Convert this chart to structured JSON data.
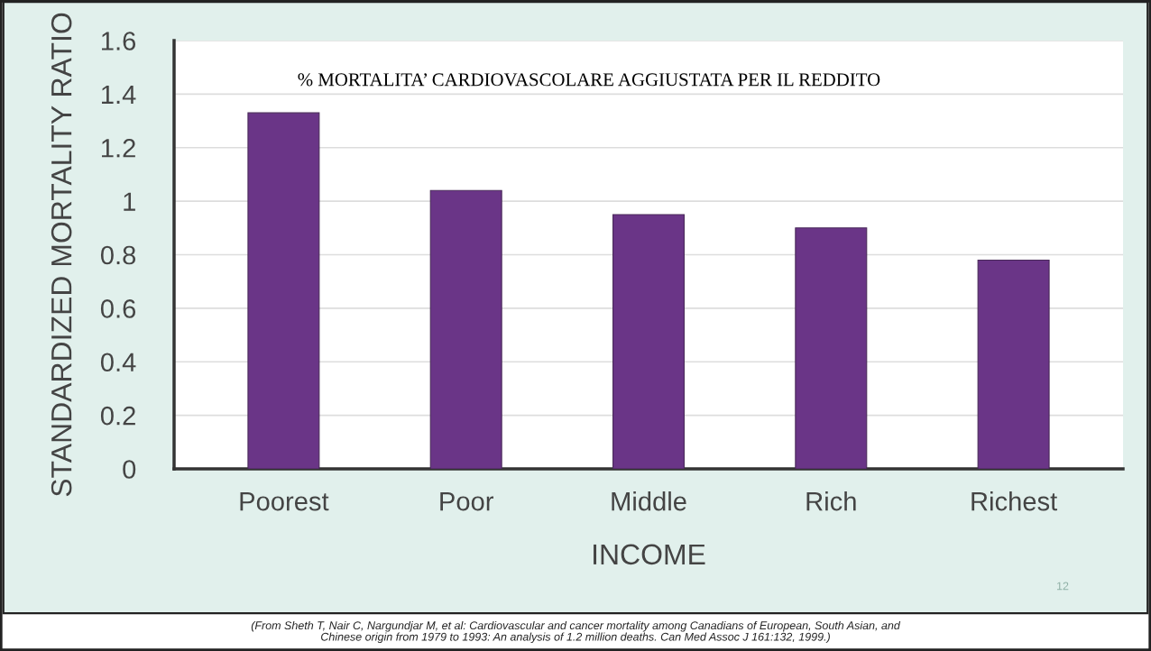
{
  "chart_data": {
    "type": "bar",
    "title": "% MORTALITA’ CARDIOVASCOLARE AGGIUSTATA PER IL REDDITO",
    "xlabel": "INCOME",
    "ylabel": "STANDARDIZED MORTALITY RATIO",
    "categories": [
      "Poorest",
      "Poor",
      "Middle",
      "Rich",
      "Richest"
    ],
    "values": [
      1.33,
      1.04,
      0.95,
      0.9,
      0.78
    ],
    "color": "#6a3587",
    "ylim": [
      0,
      1.6
    ],
    "yticks": [
      0,
      0.2,
      0.4,
      0.6,
      0.8,
      1,
      1.2,
      1.4,
      1.6
    ],
    "grid": "y",
    "annotations": [
      "12",
      "(From Sheth T, Nair C, Nargundjar M, et al: Cardiovascular and cancer mortality among Canadians of European, South Asian, and\nChinese origin from 1979 to 1993: An analysis of 1.2 million deaths. Can Med Assoc J 161:132, 1999.)"
    ]
  }
}
